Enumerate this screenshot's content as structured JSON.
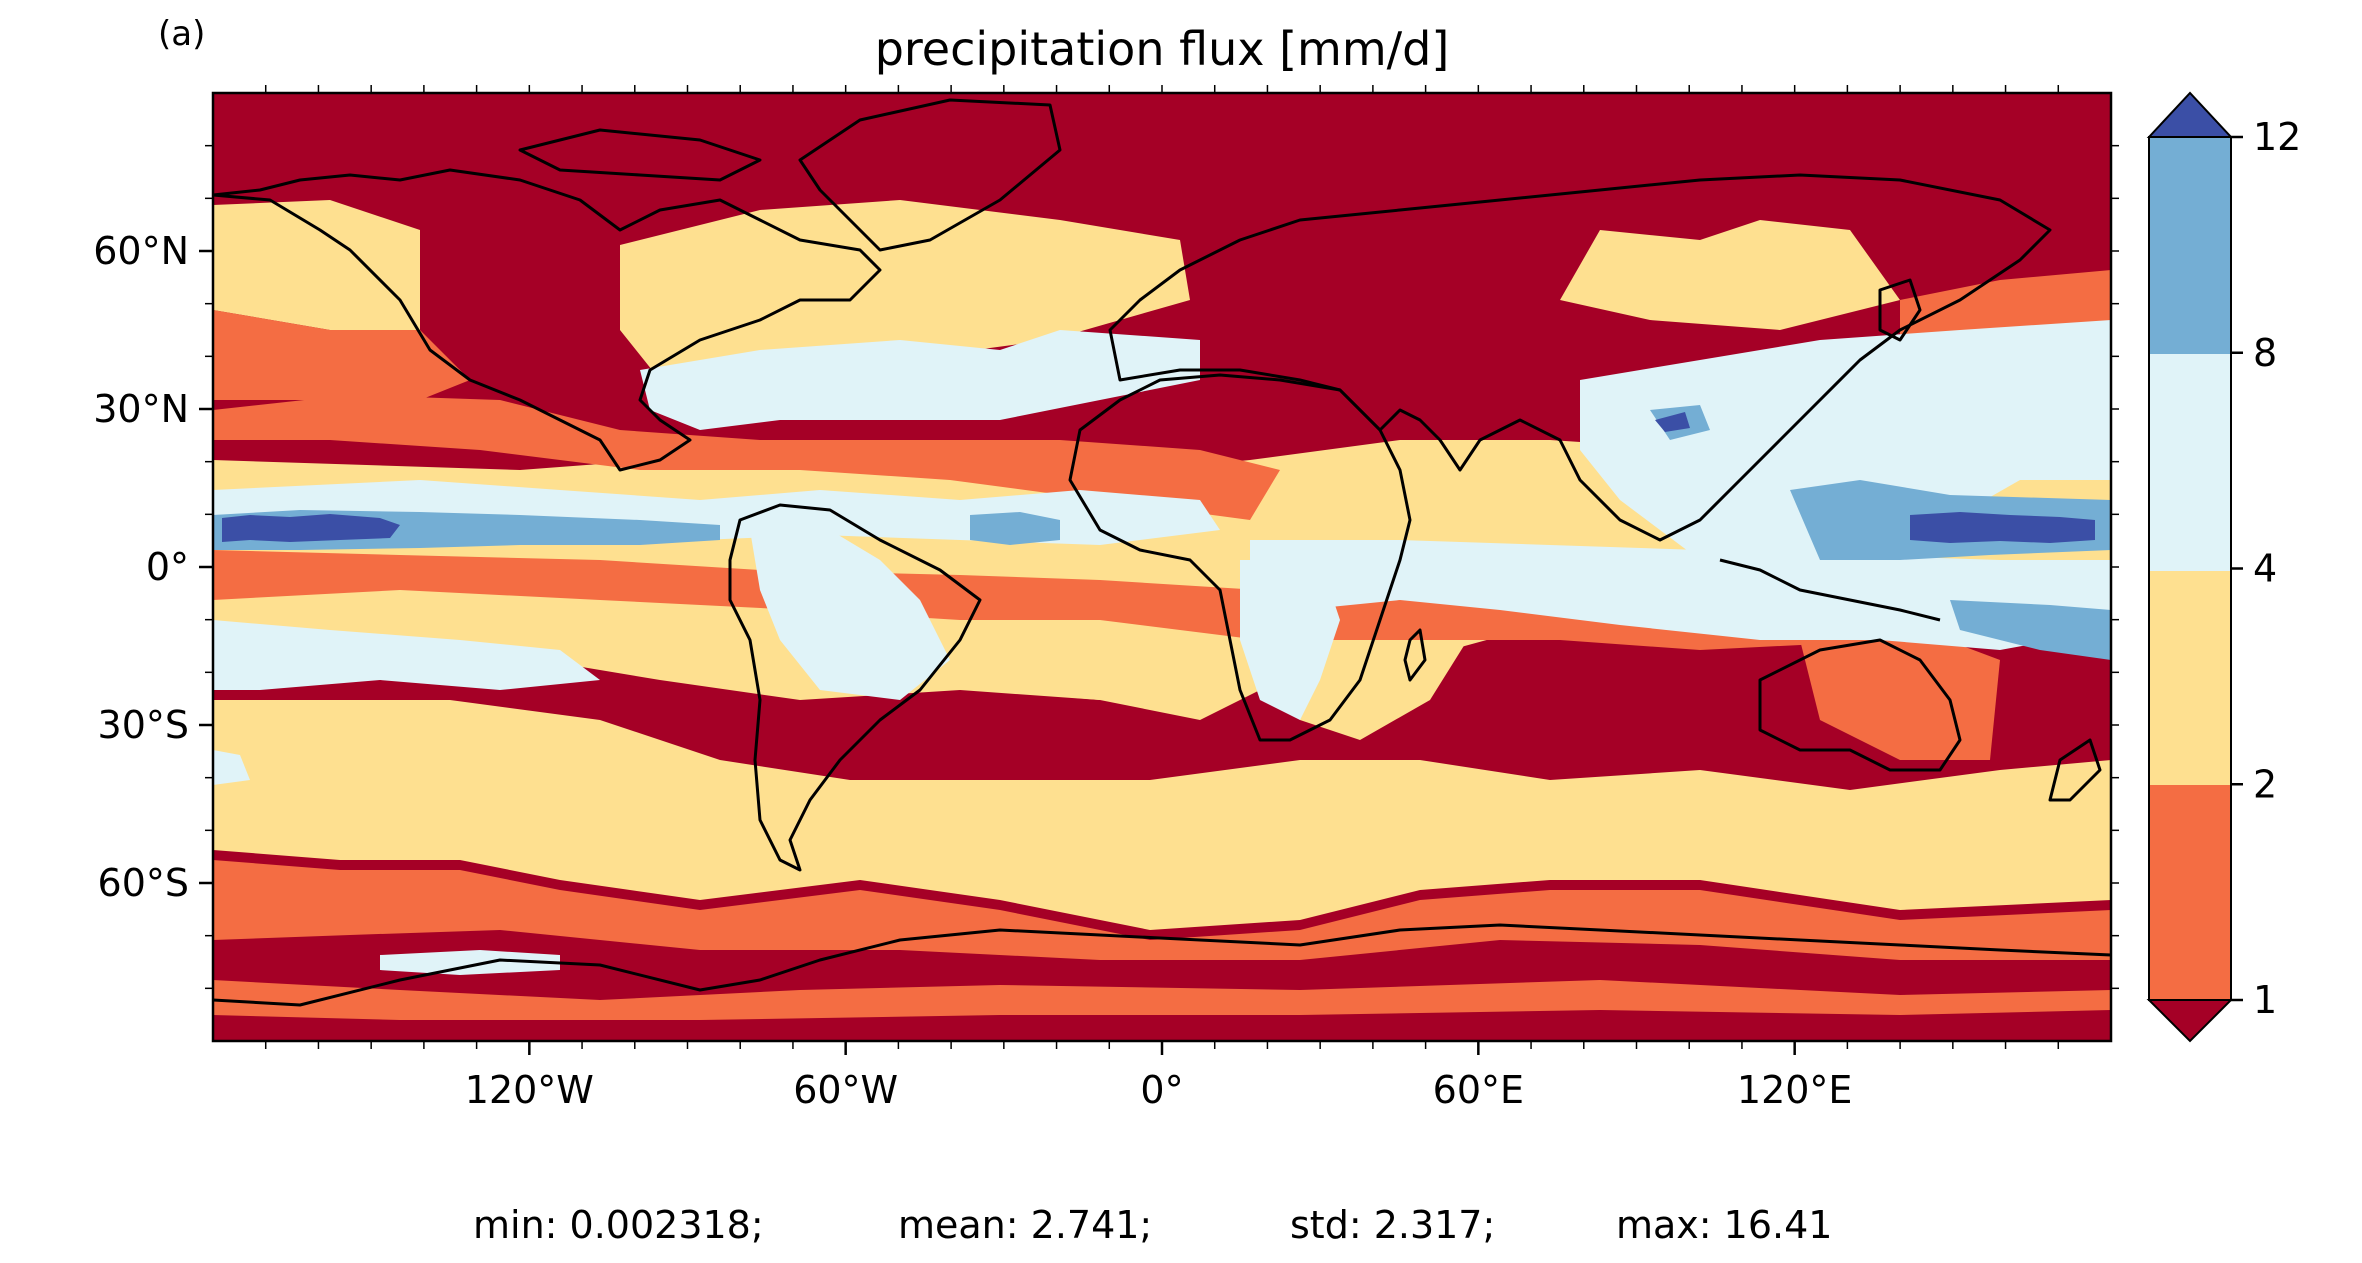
{
  "panel_label": "(a)",
  "title": "precipitation flux [mm/d]",
  "map": {
    "projection": "plate-carree",
    "lon_range": [
      -180,
      180
    ],
    "lat_range": [
      -90,
      90
    ],
    "x_ticks": [
      {
        "value": -120,
        "label": "120°W"
      },
      {
        "value": -60,
        "label": "60°W"
      },
      {
        "value": 0,
        "label": "0°"
      },
      {
        "value": 60,
        "label": "60°E"
      },
      {
        "value": 120,
        "label": "120°E"
      }
    ],
    "y_ticks": [
      {
        "value": 60,
        "label": "60°N"
      },
      {
        "value": 30,
        "label": "30°N"
      },
      {
        "value": 0,
        "label": "0°"
      },
      {
        "value": -30,
        "label": "30°S"
      },
      {
        "value": -60,
        "label": "60°S"
      }
    ],
    "coastlines": "black"
  },
  "colorbar": {
    "levels": [
      {
        "label": "12",
        "value": 12
      },
      {
        "label": "8",
        "value": 8
      },
      {
        "label": "4",
        "value": 4
      },
      {
        "label": "2",
        "value": 2
      },
      {
        "label": "1",
        "value": 1
      }
    ],
    "colors": {
      "over": "#3b4fa6",
      "8-12": "#74aed4",
      "4-8": "#e0f3f8",
      "2-4": "#fee090",
      "1-2": "#f46d43",
      "under": "#a50026"
    },
    "extend": "both"
  },
  "stats": {
    "min": "min: 0.002318;",
    "mean": "mean: 2.741;",
    "std": "std: 2.317;",
    "max": "max: 16.41"
  }
}
